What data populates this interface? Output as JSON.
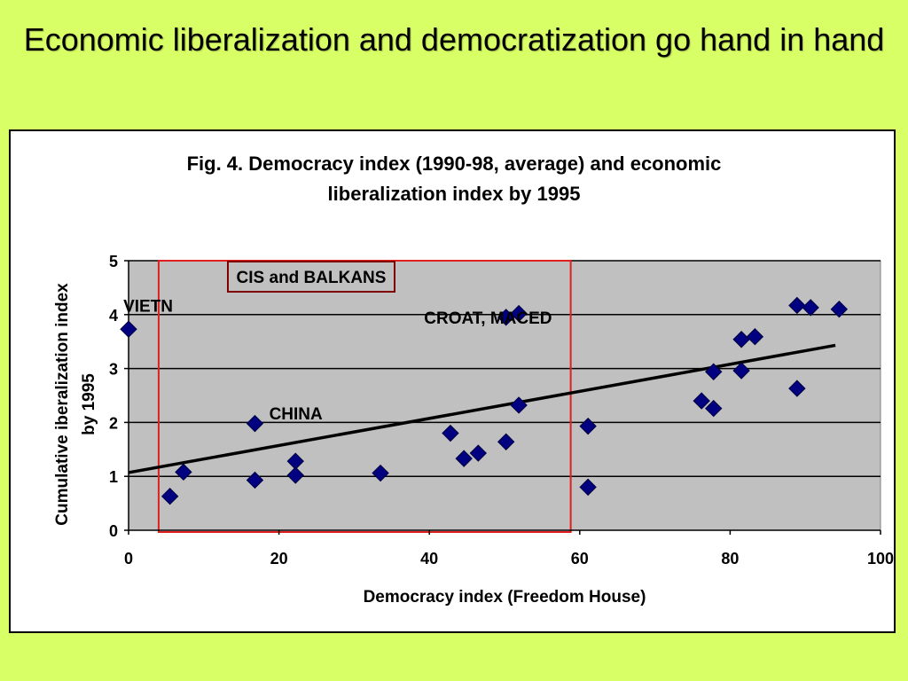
{
  "slide": {
    "title": "Economic liberalization and democratization go hand in hand"
  },
  "chart_data": {
    "type": "scatter",
    "title_lines": [
      "Fig. 4. Democracy index (1990-98, average) and economic",
      "liberalization index by 1995"
    ],
    "xlabel": "Democracy index (Freedom House)",
    "ylabel_lines": [
      "Cumulative iberalization index",
      "by 1995"
    ],
    "xlim": [
      0,
      100
    ],
    "ylim": [
      0,
      5
    ],
    "xticks": [
      0,
      20,
      40,
      60,
      80,
      100
    ],
    "yticks": [
      0,
      1,
      2,
      3,
      4,
      5
    ],
    "grid": "horizontal",
    "plot_background": "#c0c0c0",
    "marker_color": "#000080",
    "highlight_box_color": "#e02020",
    "points": [
      {
        "x": 0,
        "y": 3.73
      },
      {
        "x": 5.5,
        "y": 0.63
      },
      {
        "x": 7.3,
        "y": 1.08
      },
      {
        "x": 16.8,
        "y": 1.98
      },
      {
        "x": 16.8,
        "y": 0.93
      },
      {
        "x": 22.2,
        "y": 1.28
      },
      {
        "x": 22.2,
        "y": 1.02
      },
      {
        "x": 33.5,
        "y": 1.06
      },
      {
        "x": 42.8,
        "y": 1.8
      },
      {
        "x": 44.6,
        "y": 1.33
      },
      {
        "x": 46.5,
        "y": 1.43
      },
      {
        "x": 50.2,
        "y": 1.64
      },
      {
        "x": 50.2,
        "y": 3.95
      },
      {
        "x": 51.9,
        "y": 4.02
      },
      {
        "x": 51.9,
        "y": 2.32
      },
      {
        "x": 61.1,
        "y": 1.93
      },
      {
        "x": 61.1,
        "y": 0.8
      },
      {
        "x": 76.2,
        "y": 2.4
      },
      {
        "x": 77.8,
        "y": 2.26
      },
      {
        "x": 77.8,
        "y": 2.94
      },
      {
        "x": 81.5,
        "y": 3.54
      },
      {
        "x": 81.5,
        "y": 2.96
      },
      {
        "x": 83.3,
        "y": 3.59
      },
      {
        "x": 88.9,
        "y": 4.17
      },
      {
        "x": 88.9,
        "y": 2.63
      },
      {
        "x": 90.7,
        "y": 4.13
      },
      {
        "x": 94.5,
        "y": 4.1
      }
    ],
    "trendline": {
      "x": [
        0,
        94
      ],
      "y": [
        1.07,
        3.43
      ]
    },
    "annotations": [
      {
        "text": "VIETN",
        "x": -0.7,
        "y": 4.17
      },
      {
        "text": "CHINA",
        "x": 18.7,
        "y": 2.17
      },
      {
        "text": "CROAT, MACED",
        "x": 39.3,
        "y": 3.95
      }
    ],
    "boxed_label": {
      "text": "CIS and BALKANS"
    },
    "highlight_region": {
      "x": [
        4,
        58.8
      ],
      "y": [
        0,
        5
      ]
    }
  }
}
